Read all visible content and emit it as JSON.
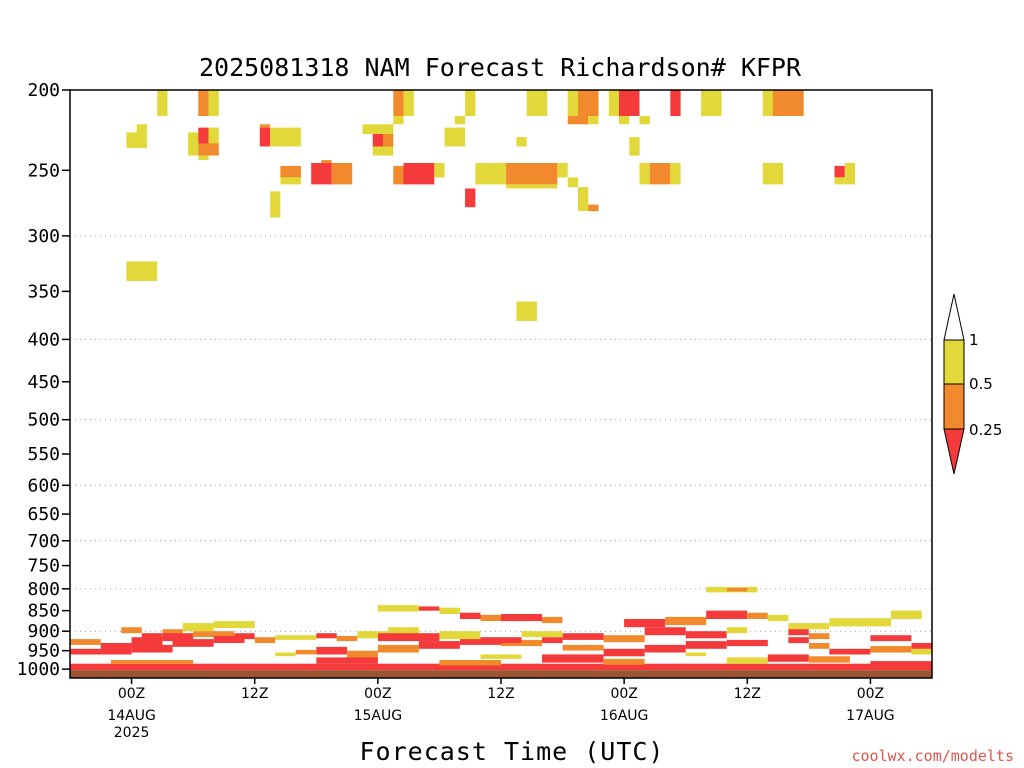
{
  "chart_data": {
    "type": "heatmap",
    "title": "2025081318 NAM Forecast Richardson# KFPR",
    "xlabel": "Forecast Time (UTC)",
    "ylabel": "",
    "credit": "coolwx.com/modelts",
    "y_scale": "log-pressure (inverted)",
    "ylim": [
      1025,
      200
    ],
    "y_ticks": [
      200,
      250,
      300,
      350,
      400,
      450,
      500,
      550,
      600,
      650,
      700,
      750,
      800,
      850,
      900,
      950,
      1000
    ],
    "y_tick_labels": [
      "200",
      "250",
      "300",
      "350",
      "400",
      "450",
      "500",
      "550",
      "600",
      "650",
      "700",
      "750",
      "800",
      "850",
      "900",
      "950",
      "1000"
    ],
    "y_gridlines_at": [
      300,
      400,
      500,
      600,
      700,
      800,
      900
    ],
    "x_unit": "hours after 2025-08-13 18Z",
    "xlim": [
      0,
      84
    ],
    "x_ticks": [
      {
        "hour": 6,
        "label": "00Z",
        "sub1": "14AUG",
        "sub2": "2025"
      },
      {
        "hour": 18,
        "label": "12Z",
        "sub1": "",
        "sub2": ""
      },
      {
        "hour": 30,
        "label": "00Z",
        "sub1": "15AUG",
        "sub2": ""
      },
      {
        "hour": 42,
        "label": "12Z",
        "sub1": "",
        "sub2": ""
      },
      {
        "hour": 54,
        "label": "00Z",
        "sub1": "16AUG",
        "sub2": ""
      },
      {
        "hour": 66,
        "label": "12Z",
        "sub1": "",
        "sub2": ""
      },
      {
        "hour": 78,
        "label": "00Z",
        "sub1": "17AUG",
        "sub2": ""
      }
    ],
    "legend": {
      "placement": "right",
      "levels": [
        "1",
        "0.5",
        "0.25"
      ],
      "colors": {
        "ge_1": "#ffffff",
        "0.5_1": "#e3d83a",
        "0.25_0.5": "#f08a2c",
        "lt_0.25": "#f43a3a"
      }
    },
    "ground_color": "#9a5530",
    "category_colors": {
      "y": "#e3d83a",
      "o": "#f08a2c",
      "r": "#f43a3a"
    },
    "cells": [
      [
        8.5,
        9.5,
        200,
        215,
        "y"
      ],
      [
        12.5,
        13.5,
        200,
        215,
        "o"
      ],
      [
        13.5,
        14.5,
        200,
        215,
        "y"
      ],
      [
        31.5,
        32.5,
        200,
        215,
        "o"
      ],
      [
        32.5,
        33.5,
        200,
        215,
        "y"
      ],
      [
        31.5,
        32.5,
        215,
        220,
        "y"
      ],
      [
        38.5,
        39.5,
        200,
        215,
        "y"
      ],
      [
        37.5,
        38.5,
        215,
        220,
        "y"
      ],
      [
        44.5,
        46.5,
        200,
        215,
        "y"
      ],
      [
        48.5,
        49.5,
        200,
        215,
        "y"
      ],
      [
        49.5,
        51.5,
        200,
        215,
        "o"
      ],
      [
        48.5,
        50.5,
        215,
        220,
        "o"
      ],
      [
        50.5,
        51.5,
        215,
        220,
        "y"
      ],
      [
        52.5,
        53.5,
        200,
        215,
        "y"
      ],
      [
        53.5,
        55.5,
        200,
        215,
        "r"
      ],
      [
        53.5,
        54.5,
        215,
        220,
        "y"
      ],
      [
        55.5,
        56.5,
        215,
        220,
        "y"
      ],
      [
        58.5,
        59.5,
        200,
        215,
        "r"
      ],
      [
        61.5,
        63.5,
        200,
        215,
        "y"
      ],
      [
        67.5,
        68.5,
        200,
        215,
        "y"
      ],
      [
        68.5,
        71.5,
        200,
        215,
        "o"
      ],
      [
        5.5,
        7.5,
        225,
        235,
        "y"
      ],
      [
        6.5,
        7.5,
        220,
        225,
        "y"
      ],
      [
        11.5,
        12.5,
        225,
        240,
        "y"
      ],
      [
        12.5,
        13.5,
        222,
        232,
        "r"
      ],
      [
        13.5,
        14.5,
        222,
        232,
        "y"
      ],
      [
        12.5,
        14.5,
        232,
        240,
        "o"
      ],
      [
        12.5,
        13.5,
        240,
        243,
        "y"
      ],
      [
        18.5,
        19.5,
        222,
        234,
        "r"
      ],
      [
        19.5,
        22.5,
        222,
        234,
        "y"
      ],
      [
        18.5,
        19.5,
        220,
        222,
        "o"
      ],
      [
        28.5,
        31.5,
        220,
        226,
        "y"
      ],
      [
        29.5,
        30.5,
        226,
        234,
        "r"
      ],
      [
        30.5,
        31.5,
        226,
        234,
        "o"
      ],
      [
        29.5,
        30.5,
        234,
        240,
        "y"
      ],
      [
        30.5,
        31.5,
        234,
        240,
        "y"
      ],
      [
        36.5,
        38.5,
        222,
        234,
        "y"
      ],
      [
        43.5,
        44.5,
        228,
        234,
        "y"
      ],
      [
        54.5,
        55.5,
        228,
        234,
        "y"
      ],
      [
        54.5,
        55.5,
        234,
        240,
        "y"
      ],
      [
        20.5,
        22.5,
        247,
        255,
        "o"
      ],
      [
        20.5,
        22.5,
        255,
        260,
        "y"
      ],
      [
        23.5,
        25.5,
        245,
        260,
        "r"
      ],
      [
        25.5,
        27.5,
        245,
        260,
        "o"
      ],
      [
        24.5,
        25.5,
        243,
        245,
        "o"
      ],
      [
        31.5,
        32.5,
        247,
        260,
        "o"
      ],
      [
        32.5,
        35.5,
        245,
        260,
        "r"
      ],
      [
        35.5,
        36.5,
        245,
        255,
        "y"
      ],
      [
        39.5,
        42.5,
        245,
        260,
        "y"
      ],
      [
        42.5,
        47.5,
        245,
        260,
        "o"
      ],
      [
        42.5,
        47.5,
        260,
        263,
        "y"
      ],
      [
        47.5,
        48.5,
        245,
        255,
        "y"
      ],
      [
        48.5,
        49.5,
        255,
        262,
        "y"
      ],
      [
        55.5,
        56.5,
        245,
        260,
        "y"
      ],
      [
        56.5,
        58.5,
        245,
        260,
        "o"
      ],
      [
        58.5,
        59.5,
        245,
        260,
        "y"
      ],
      [
        67.5,
        69.5,
        245,
        260,
        "y"
      ],
      [
        74.5,
        75.5,
        247,
        255,
        "r"
      ],
      [
        74.5,
        75.5,
        255,
        260,
        "y"
      ],
      [
        75.5,
        76.5,
        245,
        260,
        "y"
      ],
      [
        49.5,
        50.5,
        262,
        280,
        "y"
      ],
      [
        50.5,
        51.5,
        275,
        280,
        "o"
      ],
      [
        19.5,
        20.5,
        265,
        285,
        "y"
      ],
      [
        38.5,
        39.5,
        263,
        277,
        "r"
      ],
      [
        5.5,
        8.5,
        322,
        340,
        "y"
      ],
      [
        43.5,
        45.5,
        360,
        380,
        "y"
      ],
      [
        30,
        34,
        837,
        852,
        "y"
      ],
      [
        34,
        36,
        840,
        850,
        "r"
      ],
      [
        36,
        38,
        843,
        858,
        "y"
      ],
      [
        38,
        40,
        855,
        870,
        "r"
      ],
      [
        40,
        42,
        860,
        875,
        "o"
      ],
      [
        42,
        46,
        858,
        875,
        "r"
      ],
      [
        46,
        48,
        865,
        880,
        "o"
      ],
      [
        54,
        58,
        870,
        890,
        "r"
      ],
      [
        58,
        62,
        865,
        885,
        "o"
      ],
      [
        62,
        66,
        850,
        870,
        "r"
      ],
      [
        66,
        68,
        855,
        870,
        "o"
      ],
      [
        68,
        70,
        860,
        875,
        "y"
      ],
      [
        62,
        67,
        796,
        808,
        "y"
      ],
      [
        64,
        66,
        798,
        806,
        "o"
      ],
      [
        70,
        74,
        880,
        895,
        "y"
      ],
      [
        74,
        80,
        868,
        888,
        "y"
      ],
      [
        80,
        83,
        850,
        870,
        "y"
      ],
      [
        5,
        7,
        890,
        905,
        "o"
      ],
      [
        7,
        9,
        905,
        920,
        "r"
      ],
      [
        9,
        11,
        895,
        915,
        "o"
      ],
      [
        11,
        14,
        880,
        900,
        "y"
      ],
      [
        14,
        18,
        875,
        892,
        "y"
      ],
      [
        20,
        24,
        910,
        922,
        "y"
      ],
      [
        24,
        26,
        905,
        918,
        "r"
      ],
      [
        26,
        28,
        912,
        925,
        "o"
      ],
      [
        28,
        31,
        900,
        918,
        "y"
      ],
      [
        31,
        34,
        890,
        910,
        "y"
      ],
      [
        0,
        3,
        920,
        935,
        "o"
      ],
      [
        3,
        6,
        930,
        950,
        "r"
      ],
      [
        6,
        9,
        915,
        935,
        "r"
      ],
      [
        9,
        12,
        905,
        925,
        "r"
      ],
      [
        12,
        16,
        900,
        915,
        "o"
      ],
      [
        16,
        18,
        905,
        920,
        "r"
      ],
      [
        18,
        20,
        915,
        930,
        "o"
      ],
      [
        0,
        6,
        945,
        960,
        "r"
      ],
      [
        6,
        10,
        935,
        955,
        "r"
      ],
      [
        10,
        14,
        920,
        940,
        "r"
      ],
      [
        14,
        17,
        912,
        930,
        "r"
      ],
      [
        24,
        27,
        940,
        960,
        "r"
      ],
      [
        27,
        30,
        950,
        970,
        "o"
      ],
      [
        30,
        34,
        935,
        955,
        "o"
      ],
      [
        34,
        38,
        925,
        945,
        "r"
      ],
      [
        38,
        42,
        918,
        935,
        "r"
      ],
      [
        42,
        46,
        922,
        938,
        "o"
      ],
      [
        46,
        48,
        915,
        930,
        "r"
      ],
      [
        48,
        52,
        935,
        950,
        "o"
      ],
      [
        52,
        56,
        945,
        965,
        "r"
      ],
      [
        56,
        60,
        935,
        955,
        "r"
      ],
      [
        60,
        64,
        925,
        945,
        "r"
      ],
      [
        64,
        68,
        922,
        938,
        "r"
      ],
      [
        70,
        72,
        915,
        930,
        "r"
      ],
      [
        72,
        74,
        930,
        945,
        "o"
      ],
      [
        74,
        78,
        945,
        960,
        "r"
      ],
      [
        78,
        82,
        938,
        955,
        "o"
      ],
      [
        82,
        84,
        945,
        960,
        "y"
      ],
      [
        30,
        36,
        905,
        925,
        "r"
      ],
      [
        36,
        40,
        900,
        920,
        "y"
      ],
      [
        40,
        44,
        915,
        930,
        "r"
      ],
      [
        44,
        48,
        900,
        915,
        "y"
      ],
      [
        48,
        52,
        905,
        922,
        "r"
      ],
      [
        52,
        56,
        910,
        928,
        "o"
      ],
      [
        56,
        60,
        890,
        910,
        "r"
      ],
      [
        60,
        64,
        900,
        918,
        "r"
      ],
      [
        64,
        66,
        890,
        905,
        "y"
      ],
      [
        70,
        72,
        895,
        910,
        "r"
      ],
      [
        72,
        74,
        905,
        920,
        "o"
      ],
      [
        78,
        82,
        910,
        925,
        "r"
      ],
      [
        82,
        84,
        930,
        945,
        "r"
      ],
      [
        0,
        84,
        985,
        1003,
        "r"
      ],
      [
        4,
        12,
        975,
        985,
        "o"
      ],
      [
        24,
        30,
        968,
        985,
        "r"
      ],
      [
        36,
        42,
        975,
        990,
        "o"
      ],
      [
        46,
        52,
        960,
        982,
        "r"
      ],
      [
        52,
        56,
        972,
        988,
        "o"
      ],
      [
        64,
        68,
        968,
        985,
        "y"
      ],
      [
        68,
        72,
        960,
        980,
        "r"
      ],
      [
        72,
        76,
        965,
        982,
        "o"
      ],
      [
        78,
        84,
        978,
        990,
        "r"
      ],
      [
        20,
        22,
        955,
        965,
        "y"
      ],
      [
        22,
        24,
        948,
        960,
        "o"
      ],
      [
        40,
        44,
        960,
        972,
        "y"
      ],
      [
        60,
        62,
        955,
        965,
        "y"
      ]
    ]
  }
}
